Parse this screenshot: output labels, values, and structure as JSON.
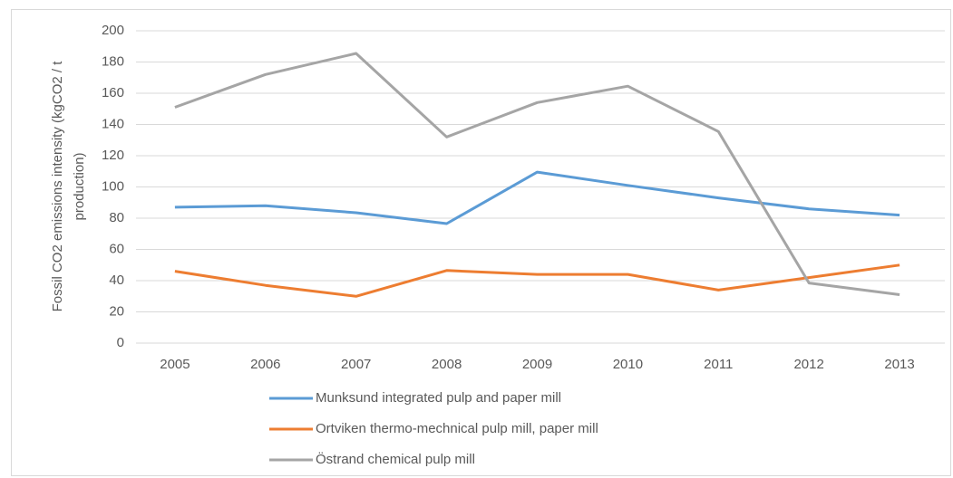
{
  "chart_data": {
    "type": "line",
    "y_label": [
      "Fossil CO2 emissions intensity (kgCO2 / t",
      "production)"
    ],
    "categories": [
      "2005",
      "2006",
      "2007",
      "2008",
      "2009",
      "2010",
      "2011",
      "2012",
      "2013"
    ],
    "series": [
      {
        "name": "Munksund integrated pulp and paper mill",
        "color": "#5b9bd5",
        "values": [
          87,
          88,
          83.5,
          76.5,
          109.5,
          101,
          93,
          86,
          82
        ]
      },
      {
        "name": "Ortviken thermo-mechnical pulp mill, paper mill",
        "color": "#ed7d31",
        "values": [
          46,
          37,
          30,
          46.5,
          44,
          44,
          34,
          42,
          50
        ]
      },
      {
        "name": "Östrand chemical pulp mill",
        "color": "#a5a5a5",
        "values": [
          151,
          172,
          185.5,
          132,
          154,
          164.5,
          135.5,
          38.5,
          31
        ]
      }
    ],
    "ylim": [
      0,
      200
    ],
    "yticks": [
      0,
      20,
      40,
      60,
      80,
      100,
      120,
      140,
      160,
      180,
      200
    ],
    "grid": true,
    "legend": "bottom"
  }
}
